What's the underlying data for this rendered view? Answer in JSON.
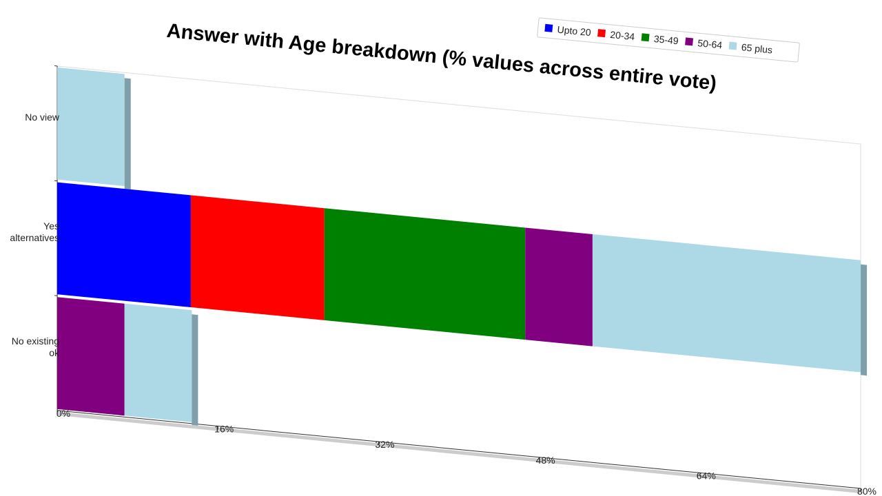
{
  "chart_data": {
    "type": "bar",
    "orientation": "horizontal",
    "stacked": true,
    "title": "Answer with Age breakdown (% values across entire vote)",
    "categories": [
      "No view",
      "Yes alternatives",
      "No existing ok"
    ],
    "series": [
      {
        "name": "Upto 20",
        "color": "#0000ff",
        "values": [
          0,
          13.3,
          0
        ]
      },
      {
        "name": "20-34",
        "color": "#ff0000",
        "values": [
          0,
          13.3,
          0
        ]
      },
      {
        "name": "35-49",
        "color": "#008000",
        "values": [
          0,
          20,
          0
        ]
      },
      {
        "name": "50-64",
        "color": "#800080",
        "values": [
          0,
          6.7,
          6.7
        ]
      },
      {
        "name": "65 plus",
        "color": "#add8e6",
        "values": [
          6.7,
          26.7,
          6.7
        ]
      }
    ],
    "xlim": [
      0,
      80
    ],
    "xticks": [
      {
        "value": 0,
        "label": "0%"
      },
      {
        "value": 16,
        "label": "16%"
      },
      {
        "value": 32,
        "label": "32%"
      },
      {
        "value": 48,
        "label": "48%"
      },
      {
        "value": 64,
        "label": "64%"
      },
      {
        "value": 80,
        "label": "80%"
      }
    ],
    "legend": "top-right"
  }
}
